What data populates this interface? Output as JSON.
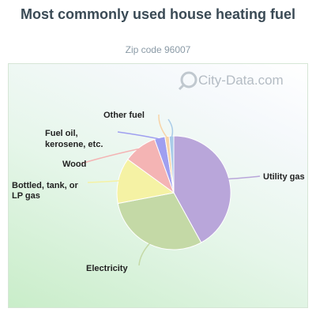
{
  "title": "Most commonly used house heating fuel",
  "subtitle": "Zip code 96007",
  "watermark": "City-Data.com",
  "chart_data": {
    "type": "pie",
    "title": "Most commonly used house heating fuel",
    "subtitle": "Zip code 96007",
    "start_angle_deg": 0,
    "direction": "clockwise",
    "slices": [
      {
        "label": "Utility gas",
        "value": 42.0,
        "color": "#b9a6da"
      },
      {
        "label": "Electricity",
        "value": 30.0,
        "color": "#c4d9a6"
      },
      {
        "label": "Bottled, tank, or LP gas",
        "value": 13.0,
        "color": "#f5f2a4"
      },
      {
        "label": "Wood",
        "value": 9.5,
        "color": "#f4b4b4"
      },
      {
        "label": "Fuel oil, kerosene, etc.",
        "value": 3.0,
        "color": "#9f9ff0"
      },
      {
        "label": "Other fuel",
        "value": 1.2,
        "color": "#f7d4a8"
      },
      {
        "label": "",
        "value": 1.3,
        "color": "#a9cbe8"
      }
    ]
  }
}
